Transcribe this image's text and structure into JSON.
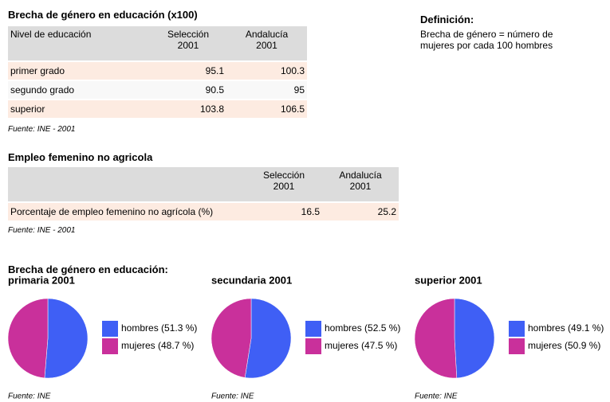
{
  "table1": {
    "title": "Brecha de género en educación (x100)",
    "header": [
      "Nivel de educación",
      "Selección\n2001",
      "Andalucía\n2001"
    ],
    "rows": [
      [
        "primer grado",
        "95.1",
        "100.3"
      ],
      [
        "segundo grado",
        "90.5",
        "95"
      ],
      [
        "superior",
        "103.8",
        "106.5"
      ]
    ],
    "source": "Fuente: INE - 2001"
  },
  "definition": {
    "title": "Definición:",
    "text": "Brecha de género = número de\nmujeres por cada 100 hombres"
  },
  "table2": {
    "title": "Empleo femenino no agricola",
    "header": [
      "",
      "Selección\n2001",
      "Andalucía\n2001"
    ],
    "rows": [
      [
        "Porcentaje de empleo femenino no agrícola (%)",
        "16.5",
        "25.2"
      ]
    ],
    "source": "Fuente: INE - 2001"
  },
  "pies_heading": "Brecha de género en educación:",
  "chart_data": [
    {
      "type": "pie",
      "title": "primaria 2001",
      "values": [
        51.3,
        48.7
      ],
      "value_labels": [
        "hombres (51.3 %)",
        "mujeres (48.7 %)"
      ],
      "colors": [
        "#3f5ff5",
        "#c9309b"
      ],
      "source": "Fuente: INE"
    },
    {
      "type": "pie",
      "title": "secundaria 2001",
      "values": [
        52.5,
        47.5
      ],
      "value_labels": [
        "hombres (52.5 %)",
        "mujeres (47.5 %)"
      ],
      "colors": [
        "#3f5ff5",
        "#c9309b"
      ],
      "source": "Fuente: INE"
    },
    {
      "type": "pie",
      "title": "superior 2001",
      "values": [
        49.1,
        50.9
      ],
      "value_labels": [
        "hombres (49.1 %)",
        "mujeres (50.9 %)"
      ],
      "colors": [
        "#3f5ff5",
        "#c9309b"
      ],
      "source": "Fuente: INE"
    }
  ]
}
